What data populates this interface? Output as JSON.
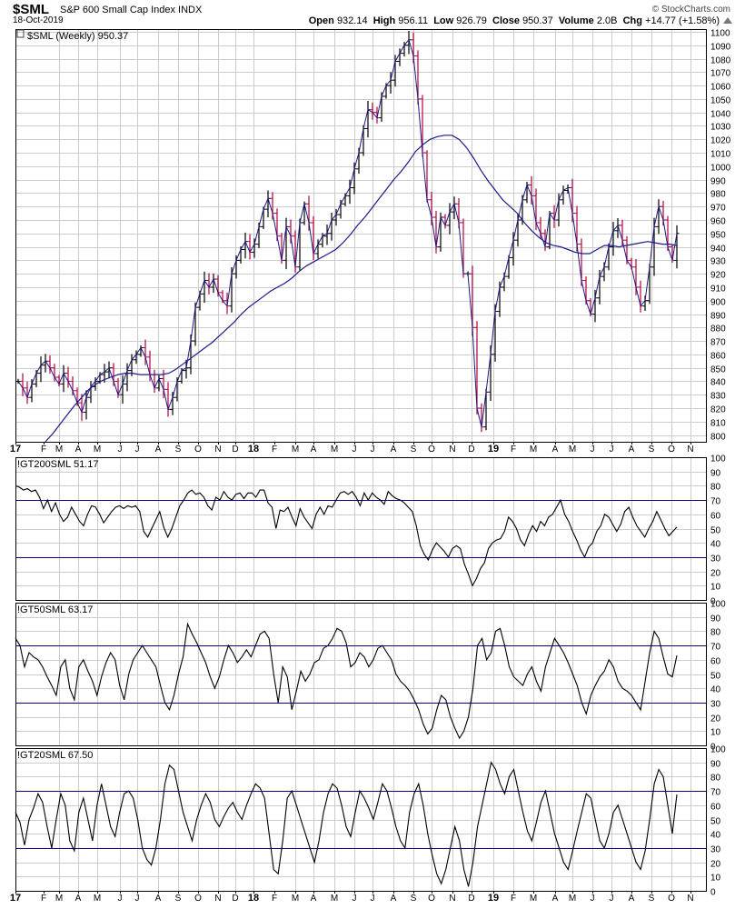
{
  "header": {
    "symbol": "$SML",
    "description": "S&P 600 Small Cap Index  INDX",
    "brand": "© StockCharts.com",
    "date": "18-Oct-2019",
    "open_label": "Open",
    "open": "932.14",
    "high_label": "High",
    "high": "956.11",
    "low_label": "Low",
    "low": "926.79",
    "close_label": "Close",
    "close": "950.37",
    "volume_label": "Volume",
    "volume": "2.0B",
    "chg_label": "Chg",
    "chg": "+14.77 (+1.58%)"
  },
  "colors": {
    "up_bar": "#000000",
    "down_bar": "#b5003f",
    "moving_average": "#1a1a8c",
    "indicator_line": "#000000",
    "guide_line": "#000080",
    "grid": "#cccccc"
  },
  "chart_data": [
    {
      "type": "ohlc",
      "title": "$SML (Weekly) 950.37",
      "ylim": [
        795,
        1102
      ],
      "y_ticks": [
        800,
        810,
        820,
        830,
        840,
        850,
        860,
        870,
        880,
        890,
        900,
        910,
        920,
        930,
        940,
        950,
        960,
        970,
        980,
        990,
        1000,
        1010,
        1020,
        1030,
        1040,
        1050,
        1060,
        1070,
        1080,
        1090,
        1100
      ],
      "x_month_labels": [
        "17",
        "F",
        "M",
        "A",
        "M",
        "J",
        "J",
        "A",
        "S",
        "O",
        "N",
        "D",
        "18",
        "F",
        "M",
        "A",
        "M",
        "J",
        "J",
        "A",
        "S",
        "O",
        "N",
        "D",
        "19",
        "F",
        "M",
        "A",
        "M",
        "J",
        "J",
        "A",
        "S",
        "O",
        "N"
      ],
      "year_labels": [
        "17",
        "18",
        "19"
      ],
      "weekly_close": [
        840,
        835,
        828,
        838,
        846,
        852,
        855,
        850,
        843,
        838,
        846,
        840,
        833,
        824,
        817,
        828,
        836,
        840,
        845,
        847,
        850,
        840,
        830,
        838,
        848,
        856,
        860,
        865,
        858,
        845,
        835,
        842,
        834,
        819,
        828,
        840,
        848,
        850,
        870,
        895,
        905,
        915,
        910,
        916,
        906,
        900,
        896,
        920,
        930,
        938,
        944,
        936,
        942,
        955,
        968,
        976,
        965,
        948,
        930,
        955,
        948,
        925,
        958,
        972,
        958,
        935,
        942,
        948,
        950,
        960,
        964,
        972,
        978,
        984,
        998,
        1010,
        1028,
        1042,
        1040,
        1036,
        1052,
        1060,
        1064,
        1078,
        1084,
        1090,
        1094,
        1082,
        1050,
        1010,
        975,
        962,
        940,
        962,
        956,
        966,
        972,
        958,
        920,
        920,
        880,
        820,
        806,
        832,
        860,
        892,
        910,
        918,
        932,
        945,
        960,
        975,
        986,
        978,
        958,
        950,
        940,
        965,
        960,
        975,
        982,
        984,
        965,
        942,
        915,
        900,
        890,
        902,
        918,
        925,
        940,
        952,
        956,
        945,
        930,
        925,
        910,
        896,
        900,
        925,
        955,
        970,
        960,
        940,
        930,
        950
      ],
      "ma_values": [
        793,
        801,
        808,
        815,
        822,
        828,
        834,
        838,
        841,
        843,
        845,
        846,
        846,
        845,
        845,
        845,
        845,
        846,
        849,
        853,
        857,
        861,
        865,
        869,
        874,
        879,
        884,
        890,
        895,
        899,
        903,
        907,
        910,
        913,
        917,
        922,
        926,
        929,
        932,
        935,
        938,
        943,
        949,
        956,
        962,
        969,
        976,
        983,
        990,
        996,
        1003,
        1011,
        1016,
        1020,
        1022,
        1023,
        1023,
        1020,
        1014,
        1006,
        997,
        989,
        982,
        975,
        970,
        965,
        958,
        952,
        947,
        943,
        941,
        940,
        938,
        936,
        935,
        935,
        938,
        941,
        941,
        940,
        941,
        942,
        943,
        944,
        943,
        942,
        942,
        941
      ],
      "ma_start_index": 0,
      "last_close": 950.37
    },
    {
      "type": "line",
      "title": "!GT200SML 51.17",
      "ylim": [
        0,
        100
      ],
      "y_ticks": [
        0,
        10,
        20,
        30,
        40,
        50,
        60,
        70,
        80,
        90,
        100
      ],
      "reference_lines": [
        30,
        70
      ],
      "values": [
        80,
        79,
        77,
        78,
        76,
        77,
        72,
        64,
        70,
        62,
        68,
        60,
        55,
        58,
        65,
        60,
        55,
        52,
        60,
        66,
        65,
        60,
        54,
        58,
        62,
        65,
        66,
        64,
        66,
        65,
        66,
        62,
        48,
        44,
        50,
        56,
        62,
        51,
        44,
        50,
        58,
        66,
        70,
        75,
        77,
        74,
        75,
        72,
        66,
        63,
        72,
        70,
        76,
        72,
        70,
        74,
        75,
        71,
        75,
        75,
        72,
        77,
        77,
        68,
        65,
        50,
        63,
        62,
        65,
        58,
        52,
        64,
        58,
        54,
        50,
        60,
        65,
        60,
        66,
        65,
        70,
        75,
        76,
        74,
        76,
        72,
        66,
        75,
        70,
        75,
        72,
        70,
        67,
        76,
        73,
        71,
        70,
        68,
        65,
        62,
        52,
        38,
        32,
        28,
        35,
        40,
        37,
        34,
        30,
        36,
        38,
        36,
        25,
        18,
        10,
        15,
        22,
        26,
        36,
        40,
        42,
        43,
        48,
        58,
        55,
        50,
        42,
        38,
        46,
        52,
        48,
        55,
        52,
        58,
        60,
        65,
        70,
        60,
        55,
        48,
        42,
        35,
        30,
        37,
        40,
        48,
        52,
        60,
        58,
        53,
        48,
        53,
        62,
        65,
        58,
        52,
        48,
        44,
        50,
        55,
        62,
        56,
        50,
        45,
        48,
        51
      ],
      "last_value": 51.17
    },
    {
      "type": "line",
      "title": "!GT50SML 63.17",
      "ylim": [
        0,
        100
      ],
      "y_ticks": [
        0,
        10,
        20,
        30,
        40,
        50,
        60,
        70,
        80,
        90,
        100
      ],
      "reference_lines": [
        30,
        70
      ],
      "values": [
        75,
        70,
        55,
        65,
        62,
        60,
        55,
        48,
        42,
        35,
        55,
        60,
        40,
        32,
        55,
        60,
        52,
        45,
        35,
        48,
        58,
        65,
        60,
        42,
        32,
        50,
        60,
        65,
        70,
        65,
        60,
        55,
        42,
        30,
        25,
        35,
        50,
        62,
        85,
        78,
        72,
        65,
        58,
        48,
        40,
        48,
        60,
        70,
        65,
        58,
        62,
        67,
        62,
        70,
        78,
        80,
        75,
        50,
        30,
        55,
        48,
        25,
        38,
        52,
        45,
        50,
        58,
        60,
        68,
        70,
        75,
        82,
        80,
        72,
        55,
        58,
        65,
        62,
        55,
        60,
        68,
        70,
        65,
        60,
        50,
        45,
        42,
        38,
        32,
        25,
        15,
        8,
        12,
        25,
        35,
        32,
        20,
        12,
        5,
        10,
        20,
        40,
        70,
        75,
        60,
        65,
        80,
        82,
        70,
        55,
        48,
        45,
        42,
        50,
        55,
        45,
        38,
        55,
        65,
        75,
        70,
        65,
        58,
        50,
        42,
        30,
        22,
        35,
        42,
        48,
        52,
        60,
        55,
        45,
        40,
        38,
        35,
        30,
        25,
        45,
        65,
        80,
        75,
        62,
        50,
        48,
        63
      ],
      "last_value": 63.17
    },
    {
      "type": "line",
      "title": "!GT20SML 67.50",
      "ylim": [
        0,
        100
      ],
      "y_ticks": [
        0,
        10,
        20,
        30,
        40,
        50,
        60,
        70,
        80,
        90,
        100
      ],
      "reference_lines": [
        30,
        70
      ],
      "values": [
        55,
        48,
        32,
        50,
        58,
        68,
        62,
        45,
        30,
        50,
        68,
        60,
        35,
        28,
        55,
        65,
        50,
        35,
        60,
        75,
        60,
        45,
        38,
        55,
        68,
        70,
        65,
        50,
        30,
        22,
        18,
        30,
        50,
        75,
        88,
        85,
        70,
        55,
        45,
        35,
        50,
        60,
        68,
        62,
        50,
        45,
        52,
        58,
        62,
        55,
        50,
        60,
        68,
        75,
        72,
        65,
        40,
        15,
        12,
        35,
        65,
        70,
        60,
        50,
        40,
        30,
        20,
        35,
        55,
        68,
        75,
        72,
        60,
        45,
        38,
        55,
        70,
        65,
        58,
        50,
        62,
        75,
        70,
        58,
        45,
        35,
        30,
        55,
        68,
        75,
        60,
        40,
        25,
        12,
        5,
        15,
        30,
        45,
        35,
        15,
        3,
        20,
        45,
        60,
        75,
        90,
        85,
        75,
        68,
        80,
        85,
        70,
        55,
        42,
        35,
        48,
        62,
        70,
        55,
        40,
        30,
        20,
        15,
        28,
        42,
        55,
        68,
        65,
        50,
        35,
        30,
        40,
        55,
        60,
        50,
        40,
        30,
        20,
        15,
        28,
        50,
        75,
        85,
        80,
        60,
        40,
        67.5
      ],
      "last_value": 67.5
    }
  ]
}
